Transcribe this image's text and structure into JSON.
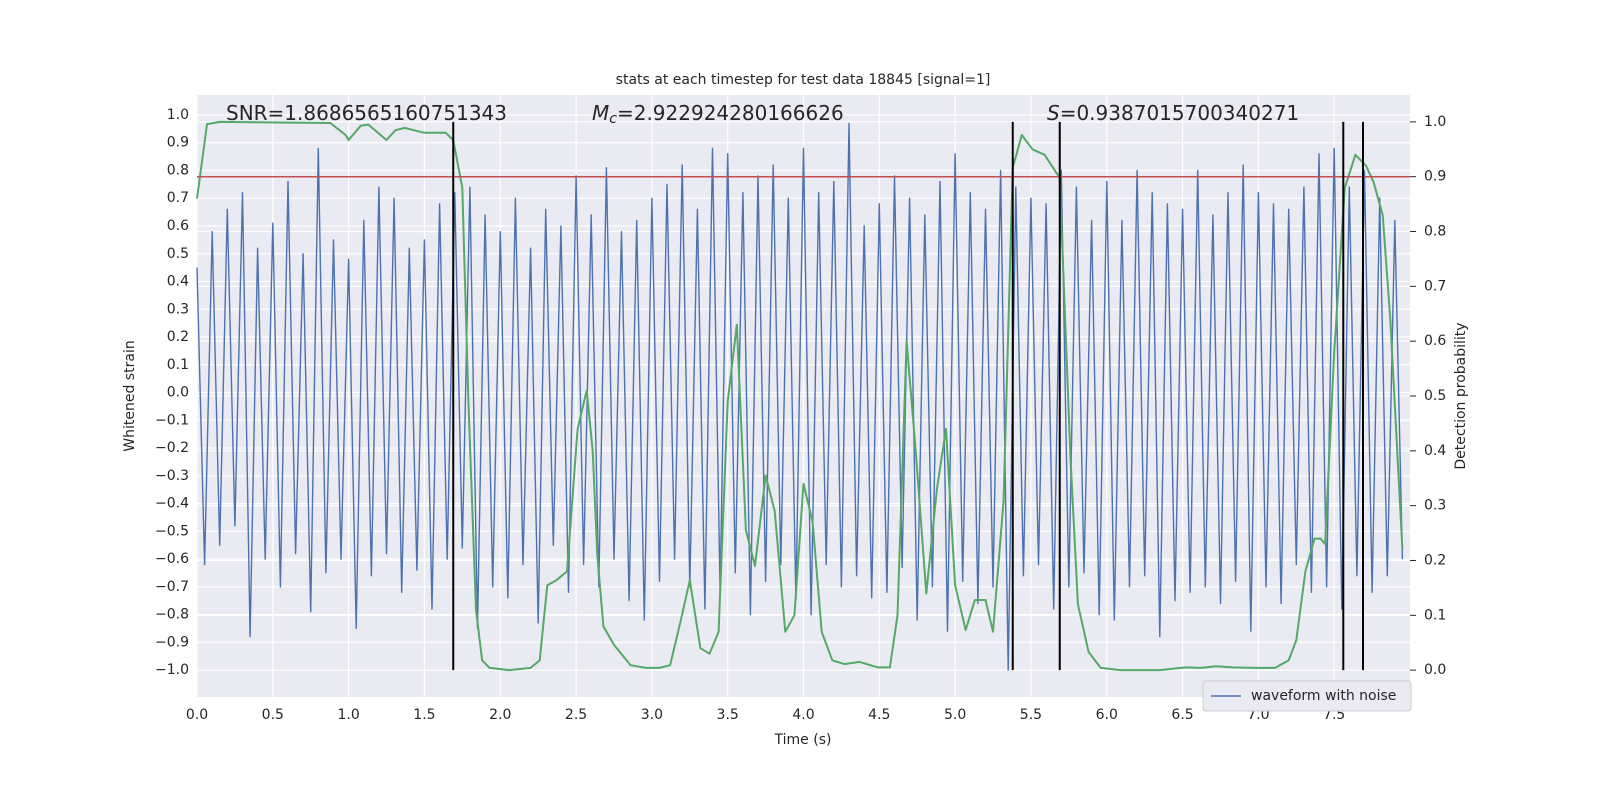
{
  "chart_data": {
    "type": "line",
    "title": "stats at each timestep for test data 18845 [signal=1]",
    "xlabel": "Time (s)",
    "ylabel": "Whitened strain",
    "y2label": "Detection probability",
    "annotations": [
      {
        "text": "SNR=1.8686565160751343"
      },
      {
        "symbol": "M",
        "subscript": "c",
        "text": "=2.922924280166626"
      },
      {
        "symbol": "S",
        "text": "=0.9387015700340271"
      }
    ],
    "xlim": [
      0,
      8
    ],
    "ylim": [
      -1.097,
      1.072
    ],
    "y2lim": [
      -0.049,
      1.049
    ],
    "xticks": [
      {
        "value": 0,
        "label": "0.0"
      },
      0.5,
      {
        "value": 1,
        "label": "1.0"
      },
      1.5,
      {
        "value": 2,
        "label": "2.0"
      },
      2.5,
      {
        "value": 3,
        "label": "3.0"
      },
      3.5,
      {
        "value": 4,
        "label": "4.0"
      },
      4.5,
      {
        "value": 5,
        "label": "5.0"
      },
      5.5,
      {
        "value": 6,
        "label": "6.0"
      },
      6.5,
      {
        "value": 7,
        "label": "7.0"
      },
      7.5
    ],
    "yticks": [
      {
        "value": -1,
        "label": "−1.0"
      },
      {
        "value": -0.9,
        "label": "−0.9"
      },
      {
        "value": -0.8,
        "label": "−0.8"
      },
      {
        "value": -0.7,
        "label": "−0.7"
      },
      {
        "value": -0.6,
        "label": "−0.6"
      },
      {
        "value": -0.5,
        "label": "−0.5"
      },
      {
        "value": -0.4,
        "label": "−0.4"
      },
      {
        "value": -0.3,
        "label": "−0.3"
      },
      {
        "value": -0.2,
        "label": "−0.2"
      },
      {
        "value": -0.1,
        "label": "−0.1"
      },
      {
        "value": 0,
        "label": "0.0"
      },
      0.1,
      0.2,
      0.3,
      0.4,
      0.5,
      0.6,
      0.7,
      0.8,
      0.9,
      {
        "value": 1,
        "label": "1.0"
      }
    ],
    "y2ticks": [
      {
        "value": 0,
        "label": "0.0"
      },
      0.1,
      0.2,
      0.3,
      0.4,
      0.5,
      0.6,
      0.7,
      0.8,
      0.9,
      {
        "value": 1,
        "label": "1.0"
      }
    ],
    "grid": true,
    "legend": "lower right",
    "threshold": {
      "value": 0.9,
      "axis": "y2",
      "color": "#c44e52"
    },
    "vlines": {
      "x": [
        1.69,
        5.38,
        5.69,
        7.56,
        7.69
      ],
      "color": "#000000"
    },
    "series": [
      {
        "name": "waveform with noise",
        "color": "#4c72b0",
        "x": [
          0,
          0.05,
          0.1,
          0.15,
          0.2,
          0.25,
          0.3,
          0.35,
          0.4,
          0.45,
          0.5,
          0.55,
          0.6,
          0.65,
          0.7,
          0.75,
          0.8,
          0.85,
          0.9,
          0.95,
          1,
          1.05,
          1.1,
          1.15,
          1.2,
          1.25,
          1.3,
          1.35,
          1.4,
          1.45,
          1.5,
          1.55,
          1.6,
          1.65,
          1.7,
          1.75,
          1.8,
          1.85,
          1.9,
          1.95,
          2,
          2.05,
          2.1,
          2.15,
          2.2,
          2.25,
          2.3,
          2.35,
          2.4,
          2.45,
          2.5,
          2.55,
          2.6,
          2.65,
          2.7,
          2.75,
          2.8,
          2.85,
          2.9,
          2.95,
          3,
          3.05,
          3.1,
          3.15,
          3.2,
          3.25,
          3.3,
          3.35,
          3.4,
          3.45,
          3.5,
          3.55,
          3.6,
          3.65,
          3.7,
          3.75,
          3.8,
          3.85,
          3.9,
          3.95,
          4,
          4.05,
          4.1,
          4.15,
          4.2,
          4.25,
          4.3,
          4.35,
          4.4,
          4.45,
          4.5,
          4.55,
          4.6,
          4.65,
          4.7,
          4.75,
          4.8,
          4.85,
          4.9,
          4.95,
          5,
          5.05,
          5.1,
          5.15,
          5.2,
          5.25,
          5.3,
          5.35,
          5.4,
          5.45,
          5.5,
          5.55,
          5.6,
          5.65,
          5.7,
          5.75,
          5.8,
          5.85,
          5.9,
          5.95,
          6,
          6.05,
          6.1,
          6.15,
          6.2,
          6.25,
          6.3,
          6.35,
          6.4,
          6.45,
          6.5,
          6.55,
          6.6,
          6.65,
          6.7,
          6.75,
          6.8,
          6.85,
          6.9,
          6.95,
          7,
          7.05,
          7.1,
          7.15,
          7.2,
          7.25,
          7.3,
          7.35,
          7.4,
          7.45,
          7.5,
          7.55,
          7.6,
          7.65,
          7.7,
          7.75,
          7.8,
          7.85,
          7.9,
          7.95
        ],
        "values": [
          0.45,
          -0.62,
          0.58,
          -0.55,
          0.66,
          -0.48,
          0.72,
          -0.88,
          0.52,
          -0.6,
          0.61,
          -0.7,
          0.76,
          -0.58,
          0.5,
          -0.79,
          0.88,
          -0.65,
          0.55,
          -0.6,
          0.48,
          -0.85,
          0.62,
          -0.66,
          0.74,
          -0.58,
          0.7,
          -0.72,
          0.52,
          -0.64,
          0.55,
          -0.78,
          0.68,
          -0.6,
          0.72,
          -0.56,
          0.74,
          -0.85,
          0.64,
          -0.7,
          0.58,
          -0.74,
          0.7,
          -0.62,
          0.52,
          -0.83,
          0.66,
          -0.55,
          0.6,
          -0.72,
          0.78,
          -0.62,
          0.64,
          -0.7,
          0.81,
          -0.6,
          0.58,
          -0.75,
          0.62,
          -0.82,
          0.7,
          -0.68,
          0.75,
          -0.6,
          0.82,
          -0.7,
          0.66,
          -0.78,
          0.88,
          -0.72,
          0.86,
          -0.65,
          0.72,
          -0.8,
          0.78,
          -0.68,
          0.82,
          -0.62,
          0.7,
          -0.75,
          0.88,
          -0.8,
          0.72,
          -0.62,
          0.76,
          -0.7,
          0.97,
          -0.66,
          0.6,
          -0.74,
          0.68,
          -0.72,
          0.78,
          -0.63,
          0.7,
          -0.82,
          0.64,
          -0.7,
          0.76,
          -0.86,
          0.86,
          -0.68,
          0.72,
          -0.76,
          0.66,
          -0.7,
          0.8,
          -1.0,
          0.74,
          -0.66,
          0.7,
          -0.62,
          0.68,
          -0.78,
          0.8,
          -0.7,
          0.74,
          -0.65,
          0.62,
          -0.8,
          0.76,
          -0.82,
          0.62,
          -0.7,
          0.8,
          -0.66,
          0.72,
          -0.88,
          0.68,
          -0.75,
          0.66,
          -0.72,
          0.8,
          -0.7,
          0.64,
          -0.76,
          0.72,
          -0.68,
          0.82,
          -0.86,
          0.72,
          -0.7,
          0.68,
          -0.76,
          0.66,
          -0.62,
          0.74,
          -0.72,
          0.86,
          -0.7,
          0.88,
          -0.78,
          0.74,
          -0.66,
          0.8,
          -0.72,
          0.7,
          -0.66,
          0.62,
          -0.6
        ]
      },
      {
        "color": "#55a868",
        "axis": "y2",
        "x": [
          0,
          0.066,
          0.15,
          0.88,
          0.98,
          1.0,
          1.08,
          1.13,
          1.25,
          1.31,
          1.37,
          1.5,
          1.64,
          1.69,
          1.75,
          1.79,
          1.84,
          1.88,
          1.93,
          2.06,
          2.2,
          2.26,
          2.31,
          2.37,
          2.44,
          2.51,
          2.57,
          2.61,
          2.64,
          2.68,
          2.75,
          2.86,
          2.96,
          3.05,
          3.12,
          3.19,
          3.25,
          3.32,
          3.38,
          3.44,
          3.5,
          3.56,
          3.62,
          3.68,
          3.75,
          3.81,
          3.88,
          3.94,
          4.0,
          4.06,
          4.12,
          4.19,
          4.27,
          4.37,
          4.49,
          4.57,
          4.62,
          4.68,
          4.74,
          4.81,
          4.88,
          4.94,
          5.0,
          5.07,
          5.13,
          5.2,
          5.25,
          5.32,
          5.38,
          5.44,
          5.51,
          5.59,
          5.69,
          5.76,
          5.81,
          5.88,
          5.96,
          6.09,
          6.35,
          6.52,
          6.62,
          6.72,
          6.83,
          6.98,
          7.11,
          7.2,
          7.25,
          7.31,
          7.37,
          7.41,
          7.44,
          7.5,
          7.57,
          7.64,
          7.71,
          7.76,
          7.82,
          7.87,
          7.95
        ],
        "values": [
          0.86,
          0.996,
          1.0,
          0.998,
          0.976,
          0.967,
          0.993,
          0.995,
          0.967,
          0.985,
          0.989,
          0.98,
          0.98,
          0.967,
          0.88,
          0.49,
          0.11,
          0.018,
          0.004,
          0,
          0.004,
          0.018,
          0.155,
          0.164,
          0.18,
          0.44,
          0.51,
          0.4,
          0.21,
          0.08,
          0.046,
          0.009,
          0.004,
          0.004,
          0.009,
          0.09,
          0.164,
          0.04,
          0.03,
          0.07,
          0.49,
          0.63,
          0.255,
          0.19,
          0.355,
          0.29,
          0.07,
          0.1,
          0.34,
          0.27,
          0.07,
          0.018,
          0.011,
          0.015,
          0.005,
          0.005,
          0.1,
          0.6,
          0.4,
          0.14,
          0.33,
          0.44,
          0.155,
          0.073,
          0.128,
          0.128,
          0.07,
          0.31,
          0.916,
          0.976,
          0.95,
          0.94,
          0.898,
          0.39,
          0.12,
          0.033,
          0.004,
          0,
          0,
          0.005,
          0.004,
          0.007,
          0.005,
          0.004,
          0.004,
          0.018,
          0.055,
          0.18,
          0.24,
          0.24,
          0.23,
          0.58,
          0.88,
          0.94,
          0.92,
          0.89,
          0.83,
          0.64,
          0.22
        ]
      }
    ]
  }
}
